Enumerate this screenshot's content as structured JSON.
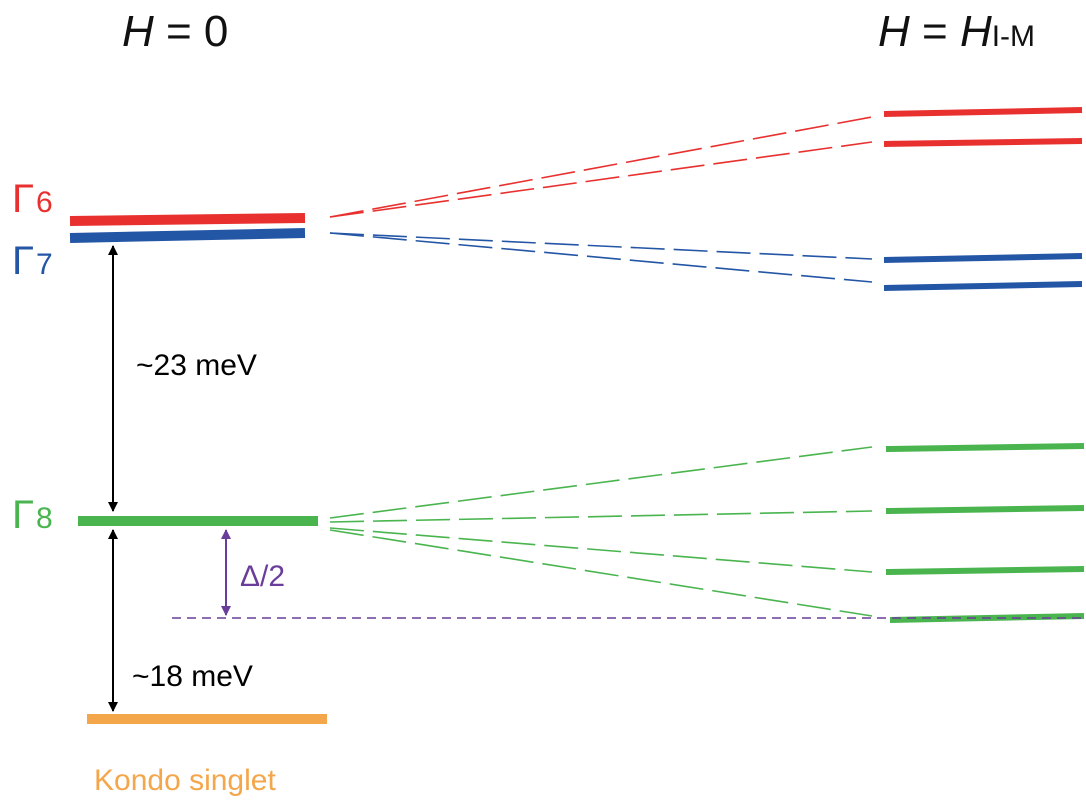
{
  "headings": {
    "left": {
      "var": "H",
      "rest": " = 0"
    },
    "right": {
      "var": "H",
      "eq": " = ",
      "var2": "H",
      "sub": "I-M"
    }
  },
  "levels": {
    "gamma6": {
      "symbol": "Γ",
      "subscript": "6",
      "color": "#e8312f"
    },
    "gamma7": {
      "symbol": "Γ",
      "subscript": "7",
      "color": "#2456a6"
    },
    "gamma8": {
      "symbol": "Γ",
      "subscript": "8",
      "color": "#4ab54f"
    },
    "kondo": {
      "label": "Kondo singlet",
      "color": "#f4a64a"
    }
  },
  "gaps": {
    "upper": "~23 meV",
    "lower": "~18 meV",
    "delta": {
      "text": "Δ/2",
      "color": "#6a3d9a"
    }
  }
}
